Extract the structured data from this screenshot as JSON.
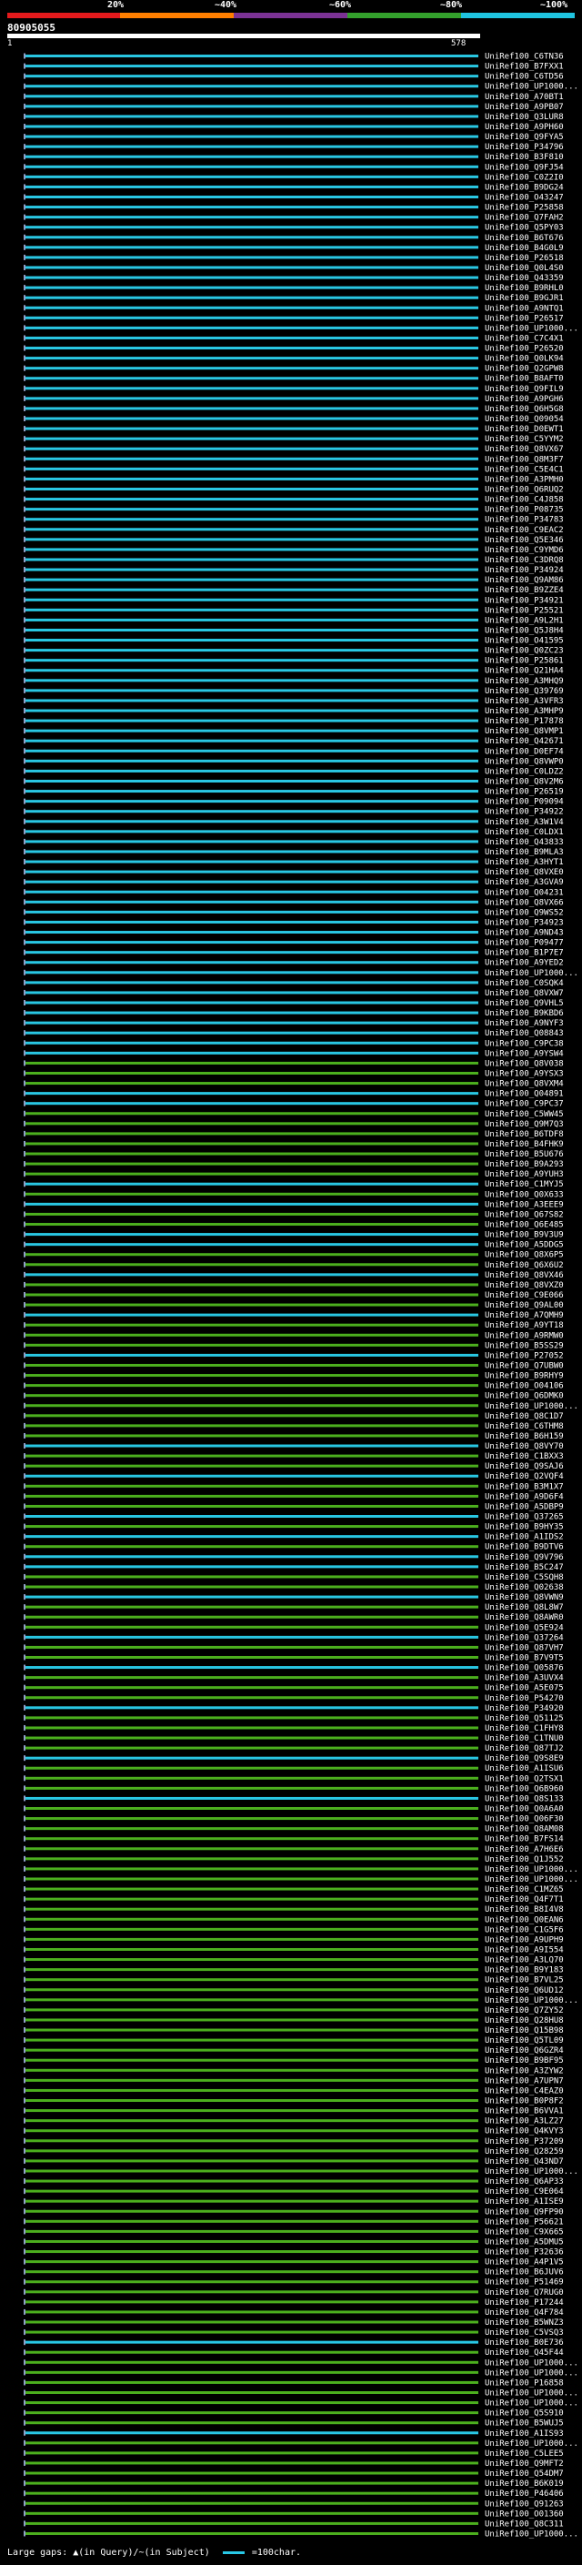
{
  "colorbar": {
    "labels": [
      "20%",
      "~40%",
      "~60%",
      "~80%",
      "~100%"
    ],
    "colors": [
      "#e41a1c",
      "#ff7f00",
      "#7b3294",
      "#33a02c",
      "#1fc4e0"
    ]
  },
  "query": {
    "id": "80905055",
    "start": "1",
    "end": "578"
  },
  "legend": {
    "gaps_text": "Large gaps: ▲(in Query)/~(in Subject)",
    "scale_text": "=100char."
  },
  "colors": {
    "cyan": "#29c7e3",
    "green": "#4caf1e",
    "line": "#8fa0c8",
    "background": "#000000"
  },
  "hits": [
    {
      "label": "UniRef100_C6TN36",
      "color": "cyan"
    },
    {
      "label": "UniRef100_B7FXX1",
      "color": "cyan"
    },
    {
      "label": "UniRef100_C6TD56",
      "color": "cyan"
    },
    {
      "label": "UniRef100_UP1000...",
      "color": "cyan"
    },
    {
      "label": "UniRef100_A70BT1",
      "color": "cyan"
    },
    {
      "label": "UniRef100_A9PB07",
      "color": "cyan"
    },
    {
      "label": "UniRef100_Q3LUR8",
      "color": "cyan"
    },
    {
      "label": "UniRef100_A9PH60",
      "color": "cyan"
    },
    {
      "label": "UniRef100_Q9FYA5",
      "color": "cyan"
    },
    {
      "label": "UniRef100_P34796",
      "color": "cyan"
    },
    {
      "label": "UniRef100_B3F810",
      "color": "cyan"
    },
    {
      "label": "UniRef100_Q9FJ54",
      "color": "cyan"
    },
    {
      "label": "UniRef100_C0Z2I0",
      "color": "cyan"
    },
    {
      "label": "UniRef100_B9DG24",
      "color": "cyan"
    },
    {
      "label": "UniRef100_O43247",
      "color": "cyan"
    },
    {
      "label": "UniRef100_P25858",
      "color": "cyan"
    },
    {
      "label": "UniRef100_Q7FAH2",
      "color": "cyan"
    },
    {
      "label": "UniRef100_Q5PY03",
      "color": "cyan"
    },
    {
      "label": "UniRef100_B6T676",
      "color": "cyan"
    },
    {
      "label": "UniRef100_B4G0L9",
      "color": "cyan"
    },
    {
      "label": "UniRef100_P26518",
      "color": "cyan"
    },
    {
      "label": "UniRef100_Q0L4S0",
      "color": "cyan"
    },
    {
      "label": "UniRef100_Q43359",
      "color": "cyan"
    },
    {
      "label": "UniRef100_B9RHL0",
      "color": "cyan"
    },
    {
      "label": "UniRef100_B9GJR1",
      "color": "cyan"
    },
    {
      "label": "UniRef100_A9NTQ1",
      "color": "cyan"
    },
    {
      "label": "UniRef100_P26517",
      "color": "cyan"
    },
    {
      "label": "UniRef100_UP1000...",
      "color": "cyan"
    },
    {
      "label": "UniRef100_C7C4X1",
      "color": "cyan"
    },
    {
      "label": "UniRef100_P26520",
      "color": "cyan"
    },
    {
      "label": "UniRef100_Q0LK94",
      "color": "cyan"
    },
    {
      "label": "UniRef100_Q2GPW8",
      "color": "cyan"
    },
    {
      "label": "UniRef100_B8AFT0",
      "color": "cyan"
    },
    {
      "label": "UniRef100_Q9FIL9",
      "color": "cyan"
    },
    {
      "label": "UniRef100_A9PGH6",
      "color": "cyan"
    },
    {
      "label": "UniRef100_Q6H5G8",
      "color": "cyan"
    },
    {
      "label": "UniRef100_Q09054",
      "color": "cyan"
    },
    {
      "label": "UniRef100_D0EWT1",
      "color": "cyan"
    },
    {
      "label": "UniRef100_C5YYM2",
      "color": "cyan"
    },
    {
      "label": "UniRef100_Q8VX67",
      "color": "cyan"
    },
    {
      "label": "UniRef100_Q8M3F7",
      "color": "cyan"
    },
    {
      "label": "UniRef100_C5E4C1",
      "color": "cyan"
    },
    {
      "label": "UniRef100_A3PMH0",
      "color": "cyan"
    },
    {
      "label": "UniRef100_Q6RUQ2",
      "color": "cyan"
    },
    {
      "label": "UniRef100_C4J858",
      "color": "cyan"
    },
    {
      "label": "UniRef100_P08735",
      "color": "cyan"
    },
    {
      "label": "UniRef100_P34783",
      "color": "cyan"
    },
    {
      "label": "UniRef100_C9EAC2",
      "color": "cyan"
    },
    {
      "label": "UniRef100_Q5E346",
      "color": "cyan"
    },
    {
      "label": "UniRef100_C9YMD6",
      "color": "cyan"
    },
    {
      "label": "UniRef100_C3DRQ8",
      "color": "cyan"
    },
    {
      "label": "UniRef100_P34924",
      "color": "cyan"
    },
    {
      "label": "UniRef100_Q9AM86",
      "color": "cyan"
    },
    {
      "label": "UniRef100_B9ZZE4",
      "color": "cyan"
    },
    {
      "label": "UniRef100_P34921",
      "color": "cyan"
    },
    {
      "label": "UniRef100_P25521",
      "color": "cyan"
    },
    {
      "label": "UniRef100_A9L2H1",
      "color": "cyan"
    },
    {
      "label": "UniRef100_Q5J8H4",
      "color": "cyan"
    },
    {
      "label": "UniRef100_O41595",
      "color": "cyan"
    },
    {
      "label": "UniRef100_Q0ZC23",
      "color": "cyan"
    },
    {
      "label": "UniRef100_P25861",
      "color": "cyan"
    },
    {
      "label": "UniRef100_Q21HA4",
      "color": "cyan"
    },
    {
      "label": "UniRef100_A3MHQ9",
      "color": "cyan"
    },
    {
      "label": "UniRef100_Q39769",
      "color": "cyan"
    },
    {
      "label": "UniRef100_A3VFR3",
      "color": "cyan"
    },
    {
      "label": "UniRef100_A3MHP9",
      "color": "cyan"
    },
    {
      "label": "UniRef100_P17878",
      "color": "cyan"
    },
    {
      "label": "UniRef100_Q8VMP1",
      "color": "cyan"
    },
    {
      "label": "UniRef100_Q42671",
      "color": "cyan"
    },
    {
      "label": "UniRef100_D0EF74",
      "color": "cyan"
    },
    {
      "label": "UniRef100_Q8VWP0",
      "color": "cyan"
    },
    {
      "label": "UniRef100_C0LDZ2",
      "color": "cyan"
    },
    {
      "label": "UniRef100_Q8V2M6",
      "color": "cyan"
    },
    {
      "label": "UniRef100_P26519",
      "color": "cyan"
    },
    {
      "label": "UniRef100_P09094",
      "color": "cyan"
    },
    {
      "label": "UniRef100_P34922",
      "color": "cyan"
    },
    {
      "label": "UniRef100_A3W1V4",
      "color": "cyan"
    },
    {
      "label": "UniRef100_C0LDX1",
      "color": "cyan"
    },
    {
      "label": "UniRef100_Q43833",
      "color": "cyan"
    },
    {
      "label": "UniRef100_B9MLA3",
      "color": "cyan"
    },
    {
      "label": "UniRef100_A3HYT1",
      "color": "cyan"
    },
    {
      "label": "UniRef100_Q8VXE0",
      "color": "cyan"
    },
    {
      "label": "UniRef100_A3GVA9",
      "color": "cyan"
    },
    {
      "label": "UniRef100_Q04231",
      "color": "cyan"
    },
    {
      "label": "UniRef100_Q8VX66",
      "color": "cyan"
    },
    {
      "label": "UniRef100_Q9WS52",
      "color": "cyan"
    },
    {
      "label": "UniRef100_P34923",
      "color": "cyan"
    },
    {
      "label": "UniRef100_A9ND43",
      "color": "cyan"
    },
    {
      "label": "UniRef100_P09477",
      "color": "cyan"
    },
    {
      "label": "UniRef100_B1P7E7",
      "color": "cyan"
    },
    {
      "label": "UniRef100_A9YED2",
      "color": "cyan"
    },
    {
      "label": "UniRef100_UP1000...",
      "color": "cyan"
    },
    {
      "label": "UniRef100_C0SQK4",
      "color": "cyan"
    },
    {
      "label": "UniRef100_Q8VXW7",
      "color": "cyan"
    },
    {
      "label": "UniRef100_Q9VHL5",
      "color": "cyan"
    },
    {
      "label": "UniRef100_B9KBD6",
      "color": "cyan"
    },
    {
      "label": "UniRef100_A9NYF3",
      "color": "cyan"
    },
    {
      "label": "UniRef100_Q08843",
      "color": "cyan"
    },
    {
      "label": "UniRef100_C9PC38",
      "color": "cyan"
    },
    {
      "label": "UniRef100_A9YSW4",
      "color": "cyan"
    },
    {
      "label": "UniRef100_Q8V038",
      "color": "green"
    },
    {
      "label": "UniRef100_A9YSX3",
      "color": "green"
    },
    {
      "label": "UniRef100_Q8VXM4",
      "color": "green"
    },
    {
      "label": "UniRef100_Q04891",
      "color": "cyan"
    },
    {
      "label": "UniRef100_C9PC37",
      "color": "cyan"
    },
    {
      "label": "UniRef100_C5WW45",
      "color": "green"
    },
    {
      "label": "UniRef100_Q9M7Q3",
      "color": "green"
    },
    {
      "label": "UniRef100_B6TDF8",
      "color": "green"
    },
    {
      "label": "UniRef100_B4FHK9",
      "color": "green"
    },
    {
      "label": "UniRef100_B5U676",
      "color": "green"
    },
    {
      "label": "UniRef100_B9A293",
      "color": "green"
    },
    {
      "label": "UniRef100_A9YUH3",
      "color": "green"
    },
    {
      "label": "UniRef100_C1MYJ5",
      "color": "cyan"
    },
    {
      "label": "UniRef100_Q0X633",
      "color": "green"
    },
    {
      "label": "UniRef100_A3EEE9",
      "color": "cyan"
    },
    {
      "label": "UniRef100_Q67S82",
      "color": "green"
    },
    {
      "label": "UniRef100_Q6E485",
      "color": "green"
    },
    {
      "label": "UniRef100_B9V3U9",
      "color": "cyan"
    },
    {
      "label": "UniRef100_A5DDG5",
      "color": "cyan"
    },
    {
      "label": "UniRef100_Q8X6P5",
      "color": "green"
    },
    {
      "label": "UniRef100_Q6X6U2",
      "color": "green"
    },
    {
      "label": "UniRef100_Q8VX46",
      "color": "cyan"
    },
    {
      "label": "UniRef100_Q8VXZ0",
      "color": "green"
    },
    {
      "label": "UniRef100_C9E066",
      "color": "green"
    },
    {
      "label": "UniRef100_Q9AL00",
      "color": "green"
    },
    {
      "label": "UniRef100_A7QMH9",
      "color": "cyan"
    },
    {
      "label": "UniRef100_A9YT18",
      "color": "green"
    },
    {
      "label": "UniRef100_A9RMW0",
      "color": "green"
    },
    {
      "label": "UniRef100_B5SS29",
      "color": "green"
    },
    {
      "label": "UniRef100_P27052",
      "color": "cyan"
    },
    {
      "label": "UniRef100_Q7UBW0",
      "color": "green"
    },
    {
      "label": "UniRef100_B9RHY9",
      "color": "green"
    },
    {
      "label": "UniRef100_O04106",
      "color": "green"
    },
    {
      "label": "UniRef100_Q6DMK0",
      "color": "green"
    },
    {
      "label": "UniRef100_UP1000...",
      "color": "green"
    },
    {
      "label": "UniRef100_Q8C1D7",
      "color": "green"
    },
    {
      "label": "UniRef100_C6THM8",
      "color": "green"
    },
    {
      "label": "UniRef100_B6H159",
      "color": "green"
    },
    {
      "label": "UniRef100_Q8VY70",
      "color": "cyan"
    },
    {
      "label": "UniRef100_C1BXX3",
      "color": "green"
    },
    {
      "label": "UniRef100_Q9SAJ6",
      "color": "green"
    },
    {
      "label": "UniRef100_Q2VQF4",
      "color": "cyan"
    },
    {
      "label": "UniRef100_B3M1X7",
      "color": "green"
    },
    {
      "label": "UniRef100_A9D6F4",
      "color": "green"
    },
    {
      "label": "UniRef100_A5DBP9",
      "color": "green"
    },
    {
      "label": "UniRef100_Q37265",
      "color": "cyan"
    },
    {
      "label": "UniRef100_B9HY35",
      "color": "green"
    },
    {
      "label": "UniRef100_A1IDS2",
      "color": "cyan"
    },
    {
      "label": "UniRef100_B9DTV6",
      "color": "green"
    },
    {
      "label": "UniRef100_Q9V796",
      "color": "cyan"
    },
    {
      "label": "UniRef100_B5C247",
      "color": "cyan"
    },
    {
      "label": "UniRef100_C5SQH8",
      "color": "green"
    },
    {
      "label": "UniRef100_Q02638",
      "color": "green"
    },
    {
      "label": "UniRef100_Q8VWN9",
      "color": "cyan"
    },
    {
      "label": "UniRef100_Q8L8W7",
      "color": "green"
    },
    {
      "label": "UniRef100_Q8AWR0",
      "color": "green"
    },
    {
      "label": "UniRef100_Q5E924",
      "color": "green"
    },
    {
      "label": "UniRef100_Q37264",
      "color": "cyan"
    },
    {
      "label": "UniRef100_Q87VH7",
      "color": "green"
    },
    {
      "label": "UniRef100_B7V9T5",
      "color": "green"
    },
    {
      "label": "UniRef100_Q05876",
      "color": "cyan"
    },
    {
      "label": "UniRef100_A3UVX4",
      "color": "green"
    },
    {
      "label": "UniRef100_A5E075",
      "color": "green"
    },
    {
      "label": "UniRef100_P54270",
      "color": "green"
    },
    {
      "label": "UniRef100_P34920",
      "color": "cyan"
    },
    {
      "label": "UniRef100_Q51125",
      "color": "green"
    },
    {
      "label": "UniRef100_C1FHY8",
      "color": "green"
    },
    {
      "label": "UniRef100_C1TNU0",
      "color": "green"
    },
    {
      "label": "UniRef100_Q87TJ2",
      "color": "green"
    },
    {
      "label": "UniRef100_Q9S8E9",
      "color": "cyan"
    },
    {
      "label": "UniRef100_A1ISU6",
      "color": "green"
    },
    {
      "label": "UniRef100_Q2TSX1",
      "color": "green"
    },
    {
      "label": "UniRef100_Q6B960",
      "color": "green"
    },
    {
      "label": "UniRef100_Q8S133",
      "color": "cyan"
    },
    {
      "label": "UniRef100_Q0A6A0",
      "color": "green"
    },
    {
      "label": "UniRef100_Q06F30",
      "color": "green"
    },
    {
      "label": "UniRef100_Q8AM08",
      "color": "green"
    },
    {
      "label": "UniRef100_B7FS14",
      "color": "green"
    },
    {
      "label": "UniRef100_A7H6E6",
      "color": "green"
    },
    {
      "label": "UniRef100_Q1J552",
      "color": "green"
    },
    {
      "label": "UniRef100_UP1000...",
      "color": "green"
    },
    {
      "label": "UniRef100_UP1000...",
      "color": "green"
    },
    {
      "label": "UniRef100_C1MZ65",
      "color": "green"
    },
    {
      "label": "UniRef100_Q4F7T1",
      "color": "green"
    },
    {
      "label": "UniRef100_B8I4V8",
      "color": "green"
    },
    {
      "label": "UniRef100_Q0EAN6",
      "color": "green"
    },
    {
      "label": "UniRef100_C1G5F6",
      "color": "green"
    },
    {
      "label": "UniRef100_A9UPH9",
      "color": "green"
    },
    {
      "label": "UniRef100_A9I554",
      "color": "green"
    },
    {
      "label": "UniRef100_A3LQ70",
      "color": "green"
    },
    {
      "label": "UniRef100_B9Y183",
      "color": "green"
    },
    {
      "label": "UniRef100_B7VL25",
      "color": "green"
    },
    {
      "label": "UniRef100_Q6UD12",
      "color": "green"
    },
    {
      "label": "UniRef100_UP1000...",
      "color": "green"
    },
    {
      "label": "UniRef100_Q7ZY52",
      "color": "green"
    },
    {
      "label": "UniRef100_Q28HU8",
      "color": "green"
    },
    {
      "label": "UniRef100_Q15B98",
      "color": "green"
    },
    {
      "label": "UniRef100_Q5TL09",
      "color": "green"
    },
    {
      "label": "UniRef100_Q6GZR4",
      "color": "green"
    },
    {
      "label": "UniRef100_B9BF95",
      "color": "green"
    },
    {
      "label": "UniRef100_A3ZYW2",
      "color": "green"
    },
    {
      "label": "UniRef100_A7UPN7",
      "color": "green"
    },
    {
      "label": "UniRef100_C4EAZ0",
      "color": "green"
    },
    {
      "label": "UniRef100_B0P8F2",
      "color": "green"
    },
    {
      "label": "UniRef100_B6VVA1",
      "color": "green"
    },
    {
      "label": "UniRef100_A3LZ27",
      "color": "green"
    },
    {
      "label": "UniRef100_Q4KVY3",
      "color": "green"
    },
    {
      "label": "UniRef100_P37209",
      "color": "green"
    },
    {
      "label": "UniRef100_Q28259",
      "color": "green"
    },
    {
      "label": "UniRef100_Q43ND7",
      "color": "green"
    },
    {
      "label": "UniRef100_UP1000...",
      "color": "green"
    },
    {
      "label": "UniRef100_Q6AP33",
      "color": "green"
    },
    {
      "label": "UniRef100_C9E064",
      "color": "green"
    },
    {
      "label": "UniRef100_A1ISE9",
      "color": "green"
    },
    {
      "label": "UniRef100_Q9FP90",
      "color": "green"
    },
    {
      "label": "UniRef100_P56621",
      "color": "green"
    },
    {
      "label": "UniRef100_C9X665",
      "color": "green"
    },
    {
      "label": "UniRef100_A5DMU5",
      "color": "green"
    },
    {
      "label": "UniRef100_P32636",
      "color": "green"
    },
    {
      "label": "UniRef100_A4P1V5",
      "color": "green"
    },
    {
      "label": "UniRef100_B6JUV6",
      "color": "green"
    },
    {
      "label": "UniRef100_P51469",
      "color": "green"
    },
    {
      "label": "UniRef100_Q7RUG0",
      "color": "green"
    },
    {
      "label": "UniRef100_P17244",
      "color": "green"
    },
    {
      "label": "UniRef100_Q4F784",
      "color": "green"
    },
    {
      "label": "UniRef100_B5WNZ3",
      "color": "green"
    },
    {
      "label": "UniRef100_C5VSQ3",
      "color": "green"
    },
    {
      "label": "UniRef100_B0E736",
      "color": "cyan"
    },
    {
      "label": "UniRef100_Q45F44",
      "color": "green"
    },
    {
      "label": "UniRef100_UP1000...",
      "color": "green"
    },
    {
      "label": "UniRef100_UP1000...",
      "color": "green"
    },
    {
      "label": "UniRef100_P16858",
      "color": "green"
    },
    {
      "label": "UniRef100_UP1000...",
      "color": "green"
    },
    {
      "label": "UniRef100_UP1000...",
      "color": "green"
    },
    {
      "label": "UniRef100_Q5S910",
      "color": "green"
    },
    {
      "label": "UniRef100_B5WUJ5",
      "color": "green"
    },
    {
      "label": "UniRef100_A1IS93",
      "color": "cyan"
    },
    {
      "label": "UniRef100_UP1000...",
      "color": "green"
    },
    {
      "label": "UniRef100_C5LEE5",
      "color": "green"
    },
    {
      "label": "UniRef100_Q9MFT2",
      "color": "green"
    },
    {
      "label": "UniRef100_Q54DM7",
      "color": "green"
    },
    {
      "label": "UniRef100_B6K019",
      "color": "green"
    },
    {
      "label": "UniRef100_P46406",
      "color": "green"
    },
    {
      "label": "UniRef100_Q91263",
      "color": "green"
    },
    {
      "label": "UniRef100_O01360",
      "color": "green"
    },
    {
      "label": "UniRef100_Q8C311",
      "color": "green"
    },
    {
      "label": "UniRef100_UP1000...",
      "color": "green"
    }
  ]
}
